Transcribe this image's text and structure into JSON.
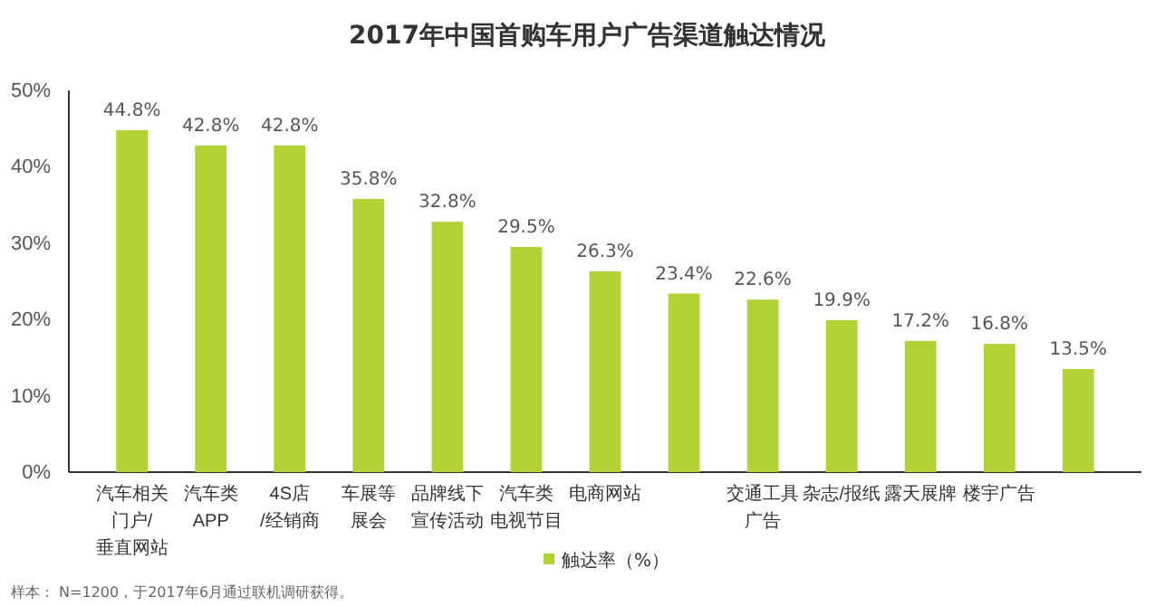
{
  "chart_data": {
    "type": "bar",
    "title": "2017年中国首购车用户广告渠道触达情况",
    "categories": [
      "汽车相关门户/垂直网站",
      "汽车类APP",
      "4S店/经销商",
      "车展等展会",
      "品牌线下宣传活动",
      "汽车类电视节目",
      "电商网站",
      null,
      "交通工具广告",
      "杂志/报纸",
      "露天展牌",
      "楼宇广告",
      null
    ],
    "series": [
      {
        "name": "触达率（%）",
        "color": "#b2d235",
        "values": [
          44.8,
          42.8,
          42.8,
          35.8,
          32.8,
          29.5,
          26.3,
          23.4,
          22.6,
          19.9,
          17.2,
          16.8,
          13.5
        ],
        "value_labels": [
          "44.8%",
          "42.8%",
          "42.8%",
          "35.8%",
          "32.8%",
          "29.5%",
          "26.3%",
          "23.4%",
          "22.6%",
          "19.9%",
          "17.2%",
          "16.8%",
          "13.5%"
        ]
      }
    ],
    "ylim": [
      0,
      50
    ],
    "yticks": [
      {
        "value": 0,
        "label": "0%"
      },
      {
        "value": 10,
        "label": "10%"
      },
      {
        "value": 20,
        "label": "20%"
      },
      {
        "value": 30,
        "label": "30%"
      },
      {
        "value": 40,
        "label": "40%"
      },
      {
        "value": 50,
        "label": "50%"
      }
    ],
    "grid": false,
    "legend": "bottom",
    "annotations": [
      "样本： N=1200，于2017年6月通过联机调研获得。"
    ]
  }
}
